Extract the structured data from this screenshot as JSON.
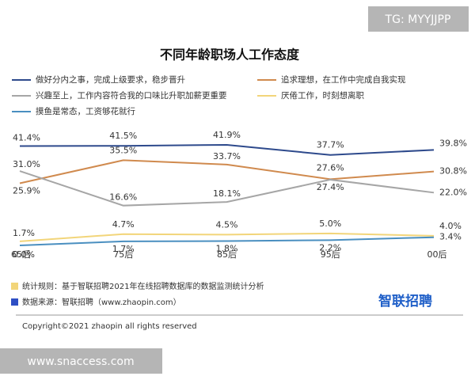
{
  "chart_data": {
    "type": "line",
    "title": "不同年龄职场人工作态度",
    "categories": [
      "65后",
      "75后",
      "85后",
      "95后",
      "00后"
    ],
    "series": [
      {
        "name": "做好分内之事，完成上级要求，稳步晋升",
        "color": "#2e4a8c",
        "values": [
          41.4,
          41.5,
          41.9,
          37.7,
          39.8
        ],
        "value_labels": [
          "41.4%",
          "41.5%",
          "41.9%",
          "37.7%",
          "39.8%"
        ]
      },
      {
        "name": "追求理想，在工作中完成自我实现",
        "color": "#d08a4e",
        "values": [
          25.9,
          35.5,
          33.7,
          27.6,
          30.8
        ],
        "value_labels": [
          "25.9%",
          "35.5%",
          "33.7%",
          "27.6%",
          "30.8%"
        ]
      },
      {
        "name": "兴趣至上，工作内容符合我的口味比升职加薪更重要",
        "color": "#a6a6a6",
        "values": [
          31.0,
          16.6,
          18.1,
          27.4,
          22.0
        ],
        "value_labels": [
          "31.0%",
          "16.6%",
          "18.1%",
          "27.4%",
          "22.0%"
        ]
      },
      {
        "name": "厌倦工作，时刻想离职",
        "color": "#f2d57a",
        "values": [
          1.7,
          4.7,
          4.5,
          5.0,
          4.0
        ],
        "value_labels": [
          "1.7%",
          "4.7%",
          "4.5%",
          "5.0%",
          "4.0%"
        ]
      },
      {
        "name": "摸鱼是常态，工资够花就行",
        "color": "#4a8fc0",
        "values": [
          0.0,
          1.7,
          1.8,
          2.2,
          3.4
        ],
        "value_labels": [
          "0.0%",
          "1.7%",
          "1.8%",
          "2.2%",
          "3.4%"
        ]
      }
    ],
    "notes": [
      "统计规则：基于智联招聘2021年在线招聘数据库的数据监测统计分析",
      "数据来源：智联招聘（www.zhaopin.com）"
    ],
    "logo": "智联招聘",
    "copyright": "Copyright©2021 zhaopin  all rights reserved"
  },
  "watermarks": [
    "TG: MYYJJPP",
    "www.snaccess.com"
  ]
}
